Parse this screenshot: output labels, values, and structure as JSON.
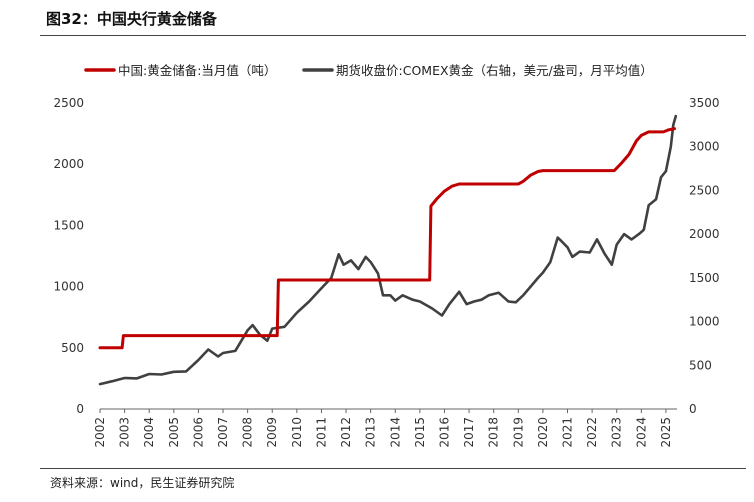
{
  "header": {
    "title": "图32：中国央行黄金储备"
  },
  "footer": {
    "source": "资料来源：wind，民生证券研究院"
  },
  "chart_data": {
    "type": "line",
    "title": "",
    "xlabel": "",
    "ylabel": "",
    "legend_position": "top",
    "grid": false,
    "x_ticks": [
      "2002",
      "2003",
      "2004",
      "2005",
      "2006",
      "2007",
      "2008",
      "2009",
      "2010",
      "2011",
      "2012",
      "2013",
      "2014",
      "2015",
      "2016",
      "2017",
      "2018",
      "2019",
      "2020",
      "2021",
      "2022",
      "2023",
      "2024",
      "2025"
    ],
    "y_left": {
      "range": [
        0,
        2500
      ],
      "ticks": [
        "0",
        "500",
        "1000",
        "1500",
        "2000",
        "2500"
      ]
    },
    "y_right": {
      "range": [
        0,
        3500
      ],
      "ticks": [
        "0",
        "500",
        "1000",
        "1500",
        "2000",
        "2500",
        "3000",
        "3500"
      ]
    },
    "series": [
      {
        "name": "中国:黄金储备:当月值（吨）",
        "axis": "left",
        "color": "#c00000",
        "points": [
          [
            2002.0,
            500
          ],
          [
            2002.9,
            500
          ],
          [
            2002.95,
            600
          ],
          [
            2009.2,
            600
          ],
          [
            2009.25,
            1054
          ],
          [
            2015.4,
            1054
          ],
          [
            2015.45,
            1658
          ],
          [
            2015.7,
            1720
          ],
          [
            2016.0,
            1780
          ],
          [
            2016.3,
            1820
          ],
          [
            2016.6,
            1838
          ],
          [
            2019.0,
            1838
          ],
          [
            2019.2,
            1860
          ],
          [
            2019.5,
            1910
          ],
          [
            2019.8,
            1940
          ],
          [
            2020.0,
            1948
          ],
          [
            2022.9,
            1948
          ],
          [
            2023.2,
            2010
          ],
          [
            2023.5,
            2080
          ],
          [
            2023.8,
            2190
          ],
          [
            2024.0,
            2235
          ],
          [
            2024.3,
            2264
          ],
          [
            2024.9,
            2264
          ],
          [
            2025.1,
            2280
          ],
          [
            2025.35,
            2290
          ]
        ]
      },
      {
        "name": "期货收盘价:COMEX黄金（右轴，美元/盎司，月平均值）",
        "axis": "right",
        "color": "#404040",
        "points": [
          [
            2002.0,
            285
          ],
          [
            2002.5,
            318
          ],
          [
            2003.0,
            355
          ],
          [
            2003.5,
            350
          ],
          [
            2004.0,
            400
          ],
          [
            2004.5,
            395
          ],
          [
            2005.0,
            425
          ],
          [
            2005.5,
            430
          ],
          [
            2006.0,
            560
          ],
          [
            2006.4,
            680
          ],
          [
            2006.8,
            600
          ],
          [
            2007.0,
            640
          ],
          [
            2007.5,
            665
          ],
          [
            2008.0,
            900
          ],
          [
            2008.2,
            960
          ],
          [
            2008.5,
            850
          ],
          [
            2008.8,
            780
          ],
          [
            2009.0,
            920
          ],
          [
            2009.5,
            940
          ],
          [
            2010.0,
            1100
          ],
          [
            2010.5,
            1230
          ],
          [
            2011.0,
            1380
          ],
          [
            2011.4,
            1500
          ],
          [
            2011.7,
            1770
          ],
          [
            2011.9,
            1650
          ],
          [
            2012.2,
            1700
          ],
          [
            2012.5,
            1600
          ],
          [
            2012.8,
            1740
          ],
          [
            2013.0,
            1680
          ],
          [
            2013.3,
            1550
          ],
          [
            2013.5,
            1300
          ],
          [
            2013.8,
            1300
          ],
          [
            2014.0,
            1240
          ],
          [
            2014.3,
            1300
          ],
          [
            2014.7,
            1250
          ],
          [
            2015.0,
            1230
          ],
          [
            2015.5,
            1150
          ],
          [
            2015.9,
            1070
          ],
          [
            2016.2,
            1200
          ],
          [
            2016.6,
            1340
          ],
          [
            2016.9,
            1200
          ],
          [
            2017.2,
            1230
          ],
          [
            2017.5,
            1250
          ],
          [
            2017.8,
            1300
          ],
          [
            2018.2,
            1330
          ],
          [
            2018.6,
            1230
          ],
          [
            2018.9,
            1220
          ],
          [
            2019.2,
            1300
          ],
          [
            2019.5,
            1400
          ],
          [
            2019.8,
            1500
          ],
          [
            2020.0,
            1560
          ],
          [
            2020.3,
            1680
          ],
          [
            2020.6,
            1960
          ],
          [
            2020.75,
            1920
          ],
          [
            2021.0,
            1850
          ],
          [
            2021.2,
            1740
          ],
          [
            2021.5,
            1800
          ],
          [
            2021.9,
            1790
          ],
          [
            2022.2,
            1940
          ],
          [
            2022.5,
            1780
          ],
          [
            2022.8,
            1650
          ],
          [
            2023.0,
            1880
          ],
          [
            2023.3,
            2000
          ],
          [
            2023.6,
            1940
          ],
          [
            2023.9,
            2000
          ],
          [
            2024.1,
            2050
          ],
          [
            2024.3,
            2330
          ],
          [
            2024.6,
            2400
          ],
          [
            2024.8,
            2650
          ],
          [
            2025.0,
            2720
          ],
          [
            2025.2,
            3000
          ],
          [
            2025.3,
            3250
          ],
          [
            2025.4,
            3350
          ]
        ]
      }
    ]
  }
}
